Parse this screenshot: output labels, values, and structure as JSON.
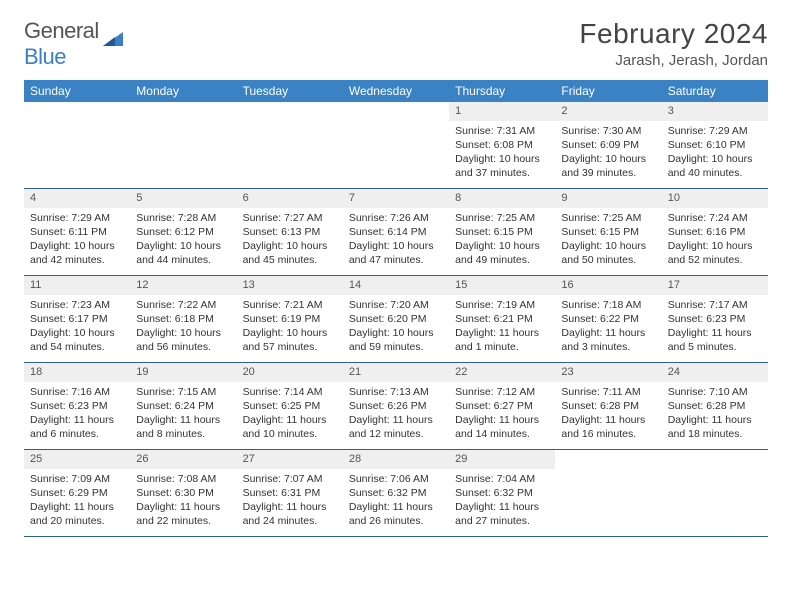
{
  "brand": {
    "word1": "General",
    "word2": "Blue",
    "accent_color": "#3b7fc4"
  },
  "title": "February 2024",
  "location": "Jarash, Jerash, Jordan",
  "header_bg": "#3b82c4",
  "daynum_bg": "#efefef",
  "row_border": "#2f5f8f",
  "day_headers": [
    "Sunday",
    "Monday",
    "Tuesday",
    "Wednesday",
    "Thursday",
    "Friday",
    "Saturday"
  ],
  "weeks": [
    [
      null,
      null,
      null,
      null,
      {
        "n": "1",
        "sunrise": "7:31 AM",
        "sunset": "6:08 PM",
        "daylight": "10 hours and 37 minutes."
      },
      {
        "n": "2",
        "sunrise": "7:30 AM",
        "sunset": "6:09 PM",
        "daylight": "10 hours and 39 minutes."
      },
      {
        "n": "3",
        "sunrise": "7:29 AM",
        "sunset": "6:10 PM",
        "daylight": "10 hours and 40 minutes."
      }
    ],
    [
      {
        "n": "4",
        "sunrise": "7:29 AM",
        "sunset": "6:11 PM",
        "daylight": "10 hours and 42 minutes."
      },
      {
        "n": "5",
        "sunrise": "7:28 AM",
        "sunset": "6:12 PM",
        "daylight": "10 hours and 44 minutes."
      },
      {
        "n": "6",
        "sunrise": "7:27 AM",
        "sunset": "6:13 PM",
        "daylight": "10 hours and 45 minutes."
      },
      {
        "n": "7",
        "sunrise": "7:26 AM",
        "sunset": "6:14 PM",
        "daylight": "10 hours and 47 minutes."
      },
      {
        "n": "8",
        "sunrise": "7:25 AM",
        "sunset": "6:15 PM",
        "daylight": "10 hours and 49 minutes."
      },
      {
        "n": "9",
        "sunrise": "7:25 AM",
        "sunset": "6:15 PM",
        "daylight": "10 hours and 50 minutes."
      },
      {
        "n": "10",
        "sunrise": "7:24 AM",
        "sunset": "6:16 PM",
        "daylight": "10 hours and 52 minutes."
      }
    ],
    [
      {
        "n": "11",
        "sunrise": "7:23 AM",
        "sunset": "6:17 PM",
        "daylight": "10 hours and 54 minutes."
      },
      {
        "n": "12",
        "sunrise": "7:22 AM",
        "sunset": "6:18 PM",
        "daylight": "10 hours and 56 minutes."
      },
      {
        "n": "13",
        "sunrise": "7:21 AM",
        "sunset": "6:19 PM",
        "daylight": "10 hours and 57 minutes."
      },
      {
        "n": "14",
        "sunrise": "7:20 AM",
        "sunset": "6:20 PM",
        "daylight": "10 hours and 59 minutes."
      },
      {
        "n": "15",
        "sunrise": "7:19 AM",
        "sunset": "6:21 PM",
        "daylight": "11 hours and 1 minute."
      },
      {
        "n": "16",
        "sunrise": "7:18 AM",
        "sunset": "6:22 PM",
        "daylight": "11 hours and 3 minutes."
      },
      {
        "n": "17",
        "sunrise": "7:17 AM",
        "sunset": "6:23 PM",
        "daylight": "11 hours and 5 minutes."
      }
    ],
    [
      {
        "n": "18",
        "sunrise": "7:16 AM",
        "sunset": "6:23 PM",
        "daylight": "11 hours and 6 minutes."
      },
      {
        "n": "19",
        "sunrise": "7:15 AM",
        "sunset": "6:24 PM",
        "daylight": "11 hours and 8 minutes."
      },
      {
        "n": "20",
        "sunrise": "7:14 AM",
        "sunset": "6:25 PM",
        "daylight": "11 hours and 10 minutes."
      },
      {
        "n": "21",
        "sunrise": "7:13 AM",
        "sunset": "6:26 PM",
        "daylight": "11 hours and 12 minutes."
      },
      {
        "n": "22",
        "sunrise": "7:12 AM",
        "sunset": "6:27 PM",
        "daylight": "11 hours and 14 minutes."
      },
      {
        "n": "23",
        "sunrise": "7:11 AM",
        "sunset": "6:28 PM",
        "daylight": "11 hours and 16 minutes."
      },
      {
        "n": "24",
        "sunrise": "7:10 AM",
        "sunset": "6:28 PM",
        "daylight": "11 hours and 18 minutes."
      }
    ],
    [
      {
        "n": "25",
        "sunrise": "7:09 AM",
        "sunset": "6:29 PM",
        "daylight": "11 hours and 20 minutes."
      },
      {
        "n": "26",
        "sunrise": "7:08 AM",
        "sunset": "6:30 PM",
        "daylight": "11 hours and 22 minutes."
      },
      {
        "n": "27",
        "sunrise": "7:07 AM",
        "sunset": "6:31 PM",
        "daylight": "11 hours and 24 minutes."
      },
      {
        "n": "28",
        "sunrise": "7:06 AM",
        "sunset": "6:32 PM",
        "daylight": "11 hours and 26 minutes."
      },
      {
        "n": "29",
        "sunrise": "7:04 AM",
        "sunset": "6:32 PM",
        "daylight": "11 hours and 27 minutes."
      },
      null,
      null
    ]
  ],
  "labels": {
    "sunrise": "Sunrise: ",
    "sunset": "Sunset: ",
    "daylight": "Daylight: "
  }
}
